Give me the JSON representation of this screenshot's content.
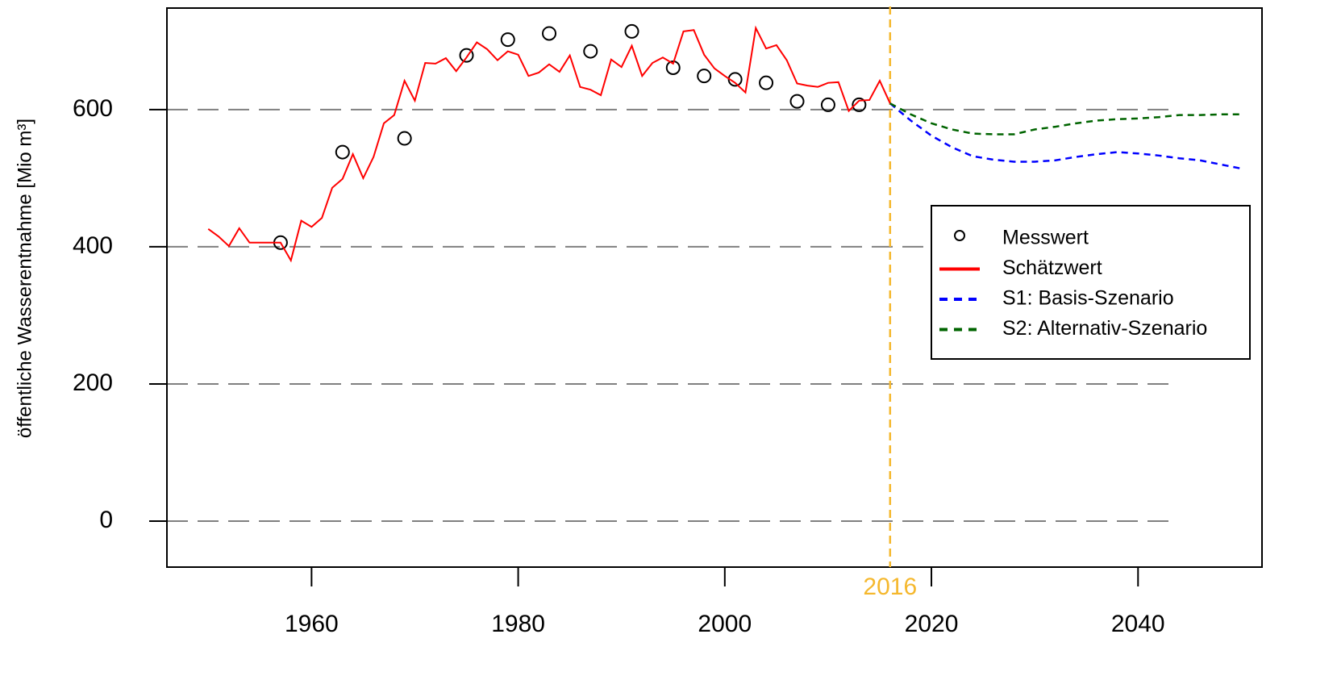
{
  "chart_data": {
    "type": "line",
    "y_label": "öffentliche Wasserentnahme [Mio m³]",
    "xlim": [
      1946,
      2052
    ],
    "ylim": [
      -67,
      748
    ],
    "xticks": [
      1960,
      1980,
      2000,
      2020,
      2040
    ],
    "yticks": [
      0,
      200,
      400,
      600
    ],
    "grid": true,
    "vline": {
      "x": 2016,
      "color": "#f5b82e"
    },
    "legend": "right",
    "series": [
      {
        "name": "Messwert",
        "color": "#000000",
        "style": "points",
        "x": [
          1957,
          1963,
          1969,
          1975,
          1979,
          1983,
          1987,
          1991,
          1995,
          1998,
          2001,
          2004,
          2007,
          2010,
          2013
        ],
        "values": [
          406,
          538,
          558,
          679,
          702,
          711,
          685,
          714,
          661,
          649,
          644,
          639,
          612,
          607,
          607
        ]
      },
      {
        "name": "Schätzwert",
        "color": "#ff0000",
        "style": "solid",
        "x": [
          1950,
          1951,
          1952,
          1953,
          1954,
          1955,
          1956,
          1957,
          1958,
          1959,
          1960,
          1961,
          1962,
          1963,
          1964,
          1965,
          1966,
          1967,
          1968,
          1969,
          1970,
          1971,
          1972,
          1973,
          1974,
          1975,
          1976,
          1977,
          1978,
          1979,
          1980,
          1981,
          1982,
          1983,
          1984,
          1985,
          1986,
          1987,
          1988,
          1989,
          1990,
          1991,
          1992,
          1993,
          1994,
          1995,
          1996,
          1997,
          1998,
          1999,
          2000,
          2001,
          2002,
          2003,
          2004,
          2005,
          2006,
          2007,
          2008,
          2009,
          2010,
          2011,
          2012,
          2013,
          2014,
          2015,
          2016
        ],
        "values": [
          426,
          415,
          401,
          427,
          406,
          406,
          406,
          406,
          380,
          438,
          429,
          442,
          486,
          499,
          535,
          500,
          531,
          580,
          592,
          642,
          613,
          668,
          667,
          675,
          656,
          676,
          698,
          688,
          672,
          685,
          680,
          649,
          654,
          666,
          655,
          679,
          633,
          629,
          621,
          673,
          662,
          693,
          649,
          668,
          676,
          667,
          714,
          716,
          680,
          660,
          649,
          639,
          625,
          719,
          689,
          694,
          672,
          638,
          635,
          633,
          639,
          640,
          598,
          613,
          614,
          642,
          609
        ]
      },
      {
        "name": "S1: Basis-Szenario",
        "color": "#0000ff",
        "style": "dashed",
        "x": [
          2016,
          2018,
          2020,
          2022,
          2024,
          2026,
          2028,
          2030,
          2032,
          2034,
          2036,
          2038,
          2040,
          2042,
          2044,
          2046,
          2048,
          2050
        ],
        "values": [
          609,
          584,
          562,
          545,
          532,
          527,
          524,
          524,
          526,
          531,
          535,
          538,
          536,
          533,
          529,
          526,
          520,
          514
        ]
      },
      {
        "name": "S2: Alternativ-Szenario",
        "color": "#006400",
        "style": "dashed",
        "x": [
          2016,
          2018,
          2020,
          2022,
          2024,
          2026,
          2028,
          2030,
          2032,
          2034,
          2036,
          2038,
          2040,
          2042,
          2044,
          2046,
          2048,
          2050
        ],
        "values": [
          609,
          593,
          580,
          571,
          565,
          564,
          564,
          571,
          575,
          580,
          584,
          586,
          587,
          589,
          592,
          592,
          593,
          593
        ]
      }
    ]
  }
}
